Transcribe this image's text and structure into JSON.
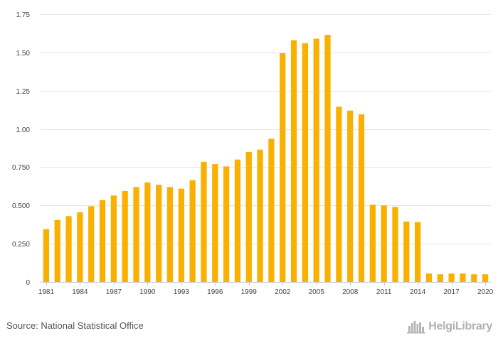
{
  "chart_data": {
    "type": "bar",
    "title": "",
    "xlabel": "",
    "ylabel": "",
    "ylim": [
      0,
      1.75
    ],
    "y_ticks": [
      0,
      0.25,
      0.5,
      0.75,
      1.0,
      1.25,
      1.5,
      1.75
    ],
    "y_tick_labels": [
      "0",
      "0.250",
      "0.500",
      "0.750",
      "1.00",
      "1.25",
      "1.50",
      "1.75"
    ],
    "categories": [
      1981,
      1982,
      1983,
      1984,
      1985,
      1986,
      1987,
      1988,
      1989,
      1990,
      1991,
      1992,
      1993,
      1994,
      1995,
      1996,
      1997,
      1998,
      1999,
      2000,
      2001,
      2002,
      2003,
      2004,
      2005,
      2006,
      2007,
      2008,
      2009,
      2010,
      2011,
      2012,
      2013,
      2014,
      2015,
      2016,
      2017,
      2018,
      2019,
      2020
    ],
    "x_tick_labels": [
      "1981",
      "1984",
      "1987",
      "1990",
      "1993",
      "1996",
      "1999",
      "2002",
      "2005",
      "2008",
      "2011",
      "2014",
      "2017",
      "2020"
    ],
    "values": [
      0.345,
      0.405,
      0.43,
      0.455,
      0.495,
      0.535,
      0.565,
      0.595,
      0.62,
      0.65,
      0.635,
      0.62,
      0.61,
      0.665,
      0.785,
      0.77,
      0.755,
      0.8,
      0.85,
      0.865,
      0.935,
      1.495,
      1.58,
      1.56,
      1.59,
      1.615,
      1.145,
      1.12,
      1.095,
      0.505,
      0.5,
      0.49,
      0.395,
      0.39,
      0.055,
      0.05,
      0.055,
      0.055,
      0.05,
      0.05
    ],
    "grid": true,
    "bar_color": "#F9B000",
    "grid_color": "#e6e6e6",
    "axis_color": "#c8c8c8"
  },
  "footer": {
    "source": "Source: National Statistical Office",
    "brand": "HelgiLibrary"
  },
  "icons": {
    "brand": "city-skyline-icon"
  }
}
